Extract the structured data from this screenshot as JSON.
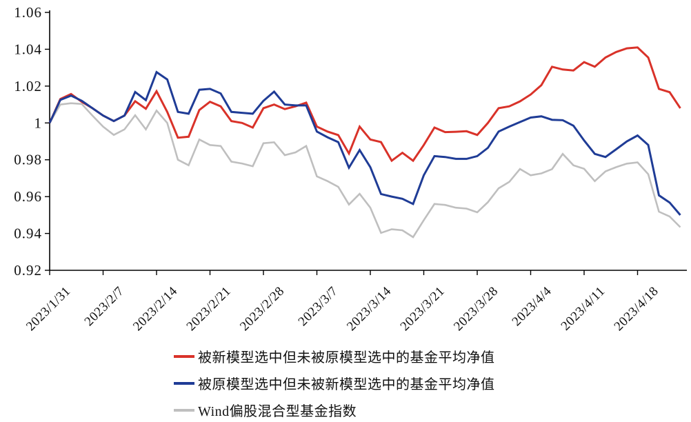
{
  "chart_data": {
    "type": "line",
    "title": "",
    "xlabel": "",
    "ylabel": "",
    "ylim": [
      0.92,
      1.06
    ],
    "grid": false,
    "legend_position": "bottom-center",
    "axis_color": "#000000",
    "tick_label_color": "#111111",
    "n_points": 60,
    "x_ticks_every_n_points": 5,
    "x_tick_labels": [
      "2023/1/31",
      "2023/2/7",
      "2023/2/14",
      "2023/2/21",
      "2023/2/28",
      "2023/3/7",
      "2023/3/14",
      "2023/3/21",
      "2023/3/28",
      "2023/4/4",
      "2023/4/11",
      "2023/4/18"
    ],
    "y_tick_values": [
      0.92,
      0.94,
      0.96,
      0.98,
      1.0,
      1.02,
      1.04,
      1.06
    ],
    "y_tick_labels": [
      "0.92",
      "0.94",
      "0.96",
      "0.98",
      "1",
      "1.02",
      "1.04",
      "1.06"
    ],
    "series": [
      {
        "name": "被新模型选中但未被原模型选中的基金平均净值",
        "color": "#d93229",
        "line_width": 3,
        "values": [
          1.0,
          1.013,
          1.0157,
          1.0115,
          1.008,
          1.004,
          1.001,
          1.004,
          1.0118,
          1.0077,
          1.0172,
          1.006,
          0.992,
          0.9925,
          1.007,
          1.0115,
          1.009,
          1.001,
          1.0,
          0.9975,
          1.008,
          1.01,
          1.0075,
          1.009,
          1.011,
          0.998,
          0.9953,
          0.9934,
          0.9834,
          0.998,
          0.991,
          0.9896,
          0.9795,
          0.9838,
          0.9795,
          0.988,
          0.9975,
          0.995,
          0.9952,
          0.9955,
          0.9935,
          1.0,
          1.008,
          1.009,
          1.0117,
          1.0154,
          1.0205,
          1.0305,
          1.029,
          1.0285,
          1.033,
          1.0305,
          1.0355,
          1.0385,
          1.0405,
          1.041,
          1.0355,
          1.0185,
          1.0167,
          1.008
        ]
      },
      {
        "name": "被原模型选中但未被新模型选中的基金平均净值",
        "color": "#1f3c96",
        "line_width": 3,
        "values": [
          1.0,
          1.0125,
          1.0148,
          1.012,
          1.008,
          1.004,
          1.001,
          1.004,
          1.0168,
          1.0124,
          1.0276,
          1.0236,
          1.006,
          1.005,
          1.018,
          1.0185,
          1.016,
          1.006,
          1.0055,
          1.005,
          1.012,
          1.017,
          1.01,
          1.0095,
          1.0095,
          0.9953,
          0.9922,
          0.9896,
          0.9757,
          0.9853,
          0.976,
          0.9614,
          0.96,
          0.9588,
          0.956,
          0.9716,
          0.982,
          0.9815,
          0.9805,
          0.9805,
          0.982,
          0.9865,
          0.9953,
          0.998,
          1.0005,
          1.0029,
          1.0036,
          1.0017,
          1.0015,
          0.9985,
          0.9905,
          0.9832,
          0.9815,
          0.9857,
          0.99,
          0.9932,
          0.988,
          0.9607,
          0.9568,
          0.95
        ]
      },
      {
        "name": "Wind偏股混合型基金指数",
        "color": "#bfbfbf",
        "line_width": 2.6,
        "values": [
          1.0,
          1.01,
          1.0107,
          1.0103,
          1.004,
          0.998,
          0.9935,
          0.9965,
          1.0042,
          0.9965,
          1.0067,
          1.0,
          0.98,
          0.977,
          0.991,
          0.988,
          0.9875,
          0.979,
          0.978,
          0.9765,
          0.989,
          0.9895,
          0.9825,
          0.984,
          0.9875,
          0.971,
          0.9684,
          0.9653,
          0.9557,
          0.9615,
          0.954,
          0.9403,
          0.9423,
          0.9417,
          0.938,
          0.9472,
          0.956,
          0.9555,
          0.954,
          0.9535,
          0.9515,
          0.957,
          0.9645,
          0.968,
          0.975,
          0.9716,
          0.9726,
          0.9749,
          0.9832,
          0.977,
          0.9751,
          0.9684,
          0.9737,
          0.976,
          0.9779,
          0.9786,
          0.9722,
          0.9518,
          0.9492,
          0.9434
        ]
      }
    ]
  }
}
